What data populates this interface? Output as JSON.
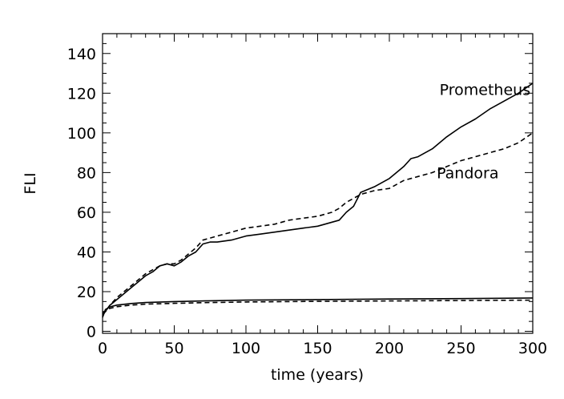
{
  "chart_data": {
    "type": "line",
    "title": "",
    "xlabel": "time (years)",
    "ylabel": "FLI",
    "xlim": [
      0,
      300
    ],
    "ylim": [
      -1,
      150
    ],
    "xticks": [
      0,
      50,
      100,
      150,
      200,
      250,
      300
    ],
    "yticks": [
      0,
      20,
      40,
      60,
      80,
      100,
      120,
      140
    ],
    "grid": false,
    "legend": "none",
    "series": [
      {
        "name": "Prometheus",
        "style": "solid",
        "label_pos": [
          235,
          122
        ],
        "x": [
          0,
          5,
          10,
          15,
          20,
          25,
          30,
          35,
          40,
          45,
          50,
          55,
          60,
          65,
          70,
          75,
          80,
          90,
          100,
          110,
          120,
          130,
          140,
          150,
          155,
          160,
          165,
          170,
          175,
          180,
          190,
          200,
          205,
          210,
          215,
          220,
          230,
          240,
          250,
          260,
          270,
          280,
          290,
          300
        ],
        "values": [
          8,
          13,
          16,
          19,
          22,
          25,
          28,
          30,
          33,
          34,
          33,
          35,
          38,
          40,
          44,
          45,
          45,
          46,
          48,
          49,
          50,
          51,
          52,
          53,
          54,
          55,
          56,
          60,
          63,
          70,
          73,
          77,
          80,
          83,
          87,
          88,
          92,
          98,
          103,
          107,
          112,
          116,
          120,
          125
        ]
      },
      {
        "name": "Pandora",
        "style": "dashed",
        "label_pos": [
          233,
          80
        ],
        "x": [
          0,
          5,
          10,
          15,
          20,
          25,
          30,
          35,
          40,
          45,
          50,
          55,
          60,
          65,
          70,
          75,
          80,
          90,
          100,
          110,
          120,
          130,
          140,
          150,
          155,
          160,
          165,
          170,
          175,
          180,
          190,
          200,
          210,
          220,
          230,
          240,
          250,
          260,
          270,
          280,
          290,
          300
        ],
        "values": [
          8,
          13,
          17,
          20,
          23,
          26,
          29,
          31,
          33,
          34,
          34,
          36,
          39,
          42,
          46,
          47,
          48,
          50,
          52,
          53,
          54,
          56,
          57,
          58,
          59,
          60,
          62,
          65,
          67,
          69,
          71,
          72,
          76,
          78,
          80,
          83,
          86,
          88,
          90,
          92,
          95,
          100
        ]
      },
      {
        "name": "",
        "style": "solid",
        "x": [
          0,
          2,
          5,
          10,
          20,
          30,
          50,
          75,
          100,
          150,
          200,
          250,
          300
        ],
        "values": [
          7,
          11,
          12.3,
          13.2,
          14.0,
          14.5,
          15.0,
          15.4,
          15.7,
          16.0,
          16.3,
          16.5,
          16.8
        ]
      },
      {
        "name": "",
        "style": "dashed",
        "x": [
          0,
          2,
          5,
          10,
          20,
          30,
          50,
          75,
          100,
          150,
          200,
          250,
          300
        ],
        "values": [
          9,
          10.5,
          11.5,
          12.4,
          13.2,
          13.7,
          14.1,
          14.5,
          14.8,
          15.1,
          15.3,
          15.5,
          15.7
        ]
      }
    ]
  }
}
